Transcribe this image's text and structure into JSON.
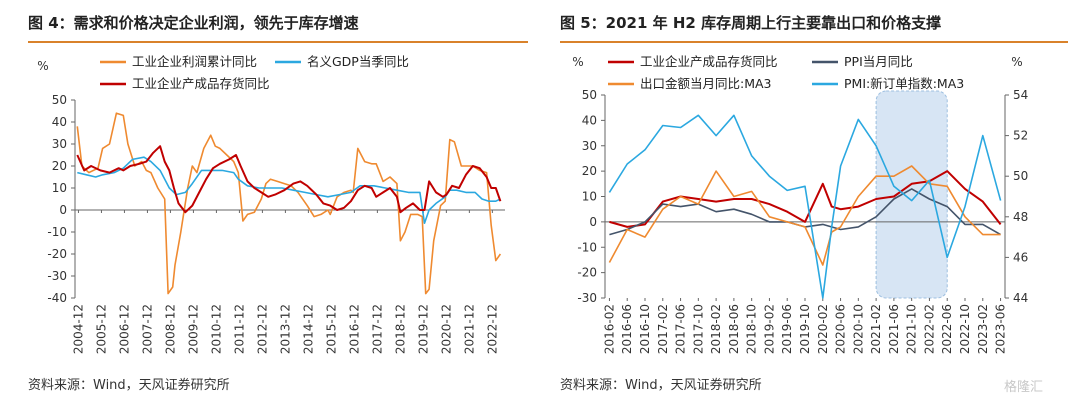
{
  "left": {
    "title": "图 4：需求和价格决定企业利润，领先于库存增速",
    "source": "资料来源：Wind，天风证券研究所",
    "chart_data": {
      "type": "line",
      "y_unit": "%",
      "ylim": [
        -40,
        50
      ],
      "yticks": [
        -40,
        -30,
        -20,
        -10,
        0,
        10,
        20,
        30,
        40,
        50
      ],
      "xticks": [
        "2004-12",
        "2005-12",
        "2006-12",
        "2007-12",
        "2008-12",
        "2009-12",
        "2010-12",
        "2011-12",
        "2012-12",
        "2013-12",
        "2014-12",
        "2015-12",
        "2016-12",
        "2017-12",
        "2018-12",
        "2019-12",
        "2020-12",
        "2021-12",
        "2022-12"
      ],
      "x_range": [
        2004.8,
        2023.5
      ],
      "grid": false,
      "series": [
        {
          "name": "工业企业利润累计同比",
          "color": "#ef8a30",
          "x": [
            2004.9,
            2005.1,
            2005.4,
            2005.8,
            2006.0,
            2006.3,
            2006.6,
            2006.9,
            2007.1,
            2007.4,
            2007.7,
            2007.9,
            2008.1,
            2008.4,
            2008.7,
            2008.85,
            2009.05,
            2009.15,
            2009.4,
            2009.7,
            2009.9,
            2010.1,
            2010.4,
            2010.7,
            2010.9,
            2011.1,
            2011.4,
            2011.7,
            2011.9,
            2012.1,
            2012.3,
            2012.6,
            2012.9,
            2013.1,
            2013.3,
            2013.6,
            2013.9,
            2014.2,
            2014.5,
            2014.9,
            2015.2,
            2015.5,
            2015.8,
            2015.9,
            2016.2,
            2016.5,
            2016.8,
            2016.9,
            2017.1,
            2017.4,
            2017.7,
            2017.9,
            2018.2,
            2018.5,
            2018.8,
            2018.95,
            2019.15,
            2019.4,
            2019.7,
            2019.9,
            2020.05,
            2020.2,
            2020.4,
            2020.7,
            2020.9,
            2021.1,
            2021.3,
            2021.6,
            2021.9,
            2022.1,
            2022.4,
            2022.7,
            2022.9,
            2023.1,
            2023.3
          ],
          "y": [
            38,
            20,
            17,
            19,
            28,
            30,
            44,
            43,
            30,
            20,
            22,
            18,
            17,
            10,
            5,
            -38,
            -35,
            -25,
            -10,
            10,
            20,
            17,
            28,
            34,
            29,
            28,
            25,
            22,
            17,
            -5,
            -2,
            -1,
            5,
            12,
            14,
            13,
            12,
            11,
            8,
            2,
            -3,
            -2,
            0,
            -2,
            6,
            8,
            9,
            8,
            28,
            22,
            21,
            21,
            13,
            15,
            12,
            -14,
            -10,
            -2,
            -2,
            -3,
            -38,
            -36,
            -14,
            2,
            4,
            32,
            31,
            20,
            20,
            20,
            18,
            17,
            -7,
            -23,
            -20
          ]
        },
        {
          "name": "名义GDP当季同比",
          "color": "#2ba8e0",
          "x": [
            2004.9,
            2005.3,
            2005.7,
            2006.0,
            2006.5,
            2006.9,
            2007.3,
            2007.8,
            2008.1,
            2008.5,
            2008.9,
            2009.2,
            2009.6,
            2009.9,
            2010.3,
            2010.8,
            2011.2,
            2011.7,
            2011.9,
            2012.3,
            2012.8,
            2013.3,
            2013.8,
            2014.3,
            2014.8,
            2015.3,
            2015.8,
            2016.3,
            2016.8,
            2017.2,
            2017.8,
            2018.3,
            2018.8,
            2019.3,
            2019.8,
            2020.0,
            2020.2,
            2020.5,
            2020.9,
            2021.1,
            2021.4,
            2021.8,
            2022.2,
            2022.5,
            2022.8,
            2023.1,
            2023.3
          ],
          "y": [
            17,
            16,
            15,
            16,
            17,
            19,
            23,
            24,
            22,
            18,
            10,
            7,
            8,
            12,
            18,
            18,
            18,
            17,
            14,
            11,
            10,
            10,
            10,
            9,
            8,
            7,
            6,
            7,
            8,
            11,
            11,
            10,
            9,
            8,
            8,
            -6,
            0,
            3,
            6,
            9,
            9,
            8,
            8,
            5,
            4,
            4,
            5
          ]
        },
        {
          "name": "工业企业产成品存货同比",
          "color": "#c00000",
          "x": [
            2004.9,
            2005.2,
            2005.5,
            2005.9,
            2006.3,
            2006.7,
            2006.9,
            2007.2,
            2007.6,
            2007.9,
            2008.2,
            2008.5,
            2008.7,
            2008.9,
            2009.1,
            2009.3,
            2009.6,
            2009.9,
            2010.2,
            2010.5,
            2010.8,
            2011.1,
            2011.5,
            2011.8,
            2012.0,
            2012.3,
            2012.6,
            2012.9,
            2013.2,
            2013.5,
            2013.9,
            2014.3,
            2014.6,
            2014.9,
            2015.3,
            2015.6,
            2015.9,
            2016.2,
            2016.5,
            2016.8,
            2017.1,
            2017.4,
            2017.7,
            2017.9,
            2018.2,
            2018.5,
            2018.8,
            2018.95,
            2019.2,
            2019.5,
            2019.8,
            2020.0,
            2020.2,
            2020.5,
            2020.8,
            2020.95,
            2021.2,
            2021.5,
            2021.8,
            2022.1,
            2022.4,
            2022.7,
            2022.9,
            2023.1,
            2023.3
          ],
          "y": [
            25,
            18,
            20,
            18,
            17,
            19,
            18,
            20,
            21,
            22,
            26,
            29,
            22,
            18,
            10,
            3,
            -1,
            2,
            8,
            14,
            19,
            21,
            23,
            25,
            20,
            13,
            10,
            8,
            6,
            7,
            9,
            12,
            13,
            11,
            7,
            3,
            2,
            0,
            1,
            4,
            9,
            11,
            10,
            6,
            8,
            10,
            6,
            -1,
            1,
            3,
            0,
            0,
            13,
            8,
            6,
            7,
            11,
            10,
            16,
            20,
            19,
            15,
            10,
            10,
            4
          ]
        }
      ]
    }
  },
  "right": {
    "title": "图 5：2021 年 H2 库存周期上行主要靠出口和价格支撑",
    "source": "资料来源：Wind，天风证券研究所",
    "watermark": "格隆汇",
    "chart_data": {
      "type": "line",
      "y_unit_left": "%",
      "y_unit_right": "%",
      "ylim_left": [
        -30,
        50
      ],
      "ylim_right": [
        44,
        54
      ],
      "yticks_left": [
        -30,
        -20,
        -10,
        0,
        10,
        20,
        30,
        40,
        50
      ],
      "yticks_right": [
        44,
        46,
        48,
        50,
        52,
        54
      ],
      "xticks": [
        "2016-02",
        "2016-06",
        "2016-10",
        "2017-02",
        "2017-06",
        "2017-10",
        "2018-02",
        "2018-06",
        "2018-10",
        "2019-02",
        "2019-06",
        "2019-10",
        "2020-02",
        "2020-06",
        "2020-10",
        "2021-02",
        "2021-06",
        "2021-10",
        "2022-02",
        "2022-06",
        "2022-10",
        "2023-02",
        "2023-06"
      ],
      "highlight_range": [
        "2021-02",
        "2022-06"
      ],
      "grid": false,
      "series": [
        {
          "name": "工业企业产成品存货同比",
          "axis": "left",
          "color": "#c00000",
          "x": [
            "2016-02",
            "2016-06",
            "2016-10",
            "2017-02",
            "2017-06",
            "2017-10",
            "2018-02",
            "2018-06",
            "2018-10",
            "2019-02",
            "2019-06",
            "2019-10",
            "2020-02",
            "2020-04",
            "2020-06",
            "2020-10",
            "2021-02",
            "2021-06",
            "2021-10",
            "2022-02",
            "2022-06",
            "2022-10",
            "2023-02",
            "2023-06"
          ],
          "y": [
            0,
            -2,
            -1,
            8,
            10,
            9,
            8,
            9,
            9,
            7,
            4,
            0,
            15,
            6,
            5,
            6,
            9,
            10,
            15,
            16,
            20,
            13,
            8,
            -1
          ]
        },
        {
          "name": "PPI当月同比",
          "axis": "left",
          "color": "#44546a",
          "x": [
            "2016-02",
            "2016-06",
            "2016-10",
            "2017-02",
            "2017-06",
            "2017-10",
            "2018-02",
            "2018-06",
            "2018-10",
            "2019-02",
            "2019-06",
            "2019-10",
            "2020-02",
            "2020-06",
            "2020-10",
            "2021-02",
            "2021-06",
            "2021-10",
            "2022-02",
            "2022-06",
            "2022-10",
            "2023-02",
            "2023-06"
          ],
          "y": [
            -5,
            -3,
            0,
            7,
            6,
            7,
            4,
            5,
            3,
            0,
            0,
            -2,
            -1,
            -3,
            -2,
            2,
            9,
            13,
            9,
            6,
            -1,
            -1,
            -5
          ]
        },
        {
          "name": "出口金额当月同比:MA3",
          "axis": "left",
          "color": "#ef8a30",
          "x": [
            "2016-02",
            "2016-06",
            "2016-10",
            "2017-02",
            "2017-06",
            "2017-10",
            "2018-02",
            "2018-06",
            "2018-10",
            "2019-02",
            "2019-06",
            "2019-10",
            "2020-02",
            "2020-04",
            "2020-06",
            "2020-10",
            "2021-02",
            "2021-06",
            "2021-10",
            "2022-02",
            "2022-06",
            "2022-10",
            "2023-02",
            "2023-06"
          ],
          "y": [
            -16,
            -3,
            -6,
            5,
            10,
            7,
            20,
            10,
            12,
            2,
            0,
            -2,
            -17,
            -4,
            -2,
            10,
            18,
            18,
            22,
            15,
            14,
            2,
            -5,
            -5
          ]
        },
        {
          "name": "PMI:新订单指数:MA3",
          "axis": "right",
          "color": "#2ba8e0",
          "x": [
            "2016-02",
            "2016-06",
            "2016-10",
            "2017-02",
            "2017-06",
            "2017-10",
            "2018-02",
            "2018-06",
            "2018-10",
            "2019-02",
            "2019-06",
            "2019-10",
            "2020-02",
            "2020-04",
            "2020-06",
            "2020-10",
            "2021-02",
            "2021-06",
            "2021-10",
            "2022-02",
            "2022-06",
            "2022-10",
            "2023-02",
            "2023-06"
          ],
          "y": [
            49.2,
            50.6,
            51.3,
            52.5,
            52.4,
            53.0,
            52.0,
            53.0,
            51.0,
            50.0,
            49.3,
            49.5,
            44.0,
            47.5,
            50.5,
            52.8,
            51.5,
            49.5,
            48.8,
            49.8,
            46.0,
            48.5,
            52.0,
            48.8
          ]
        }
      ]
    }
  }
}
